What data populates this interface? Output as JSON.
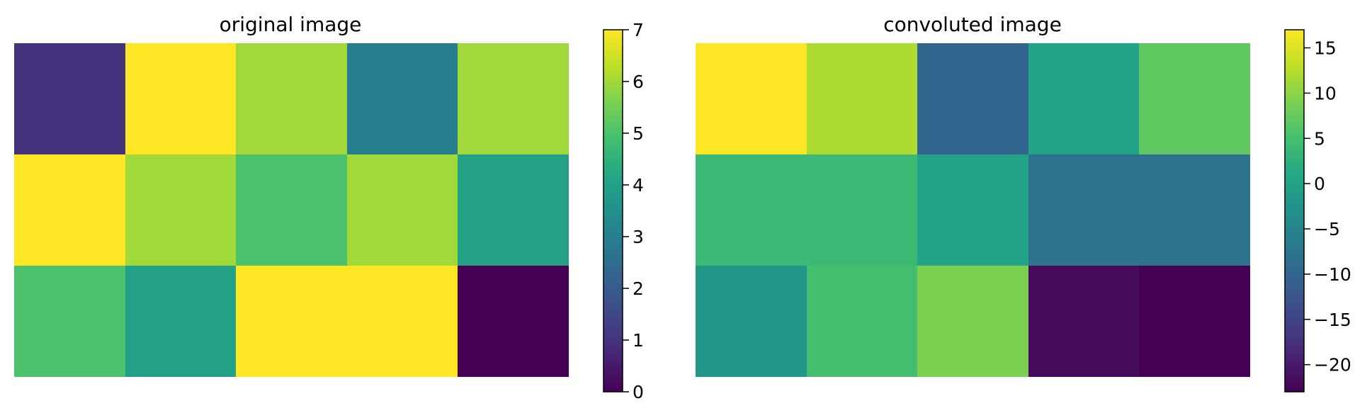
{
  "chart_data": [
    {
      "type": "heatmap",
      "title": "original image",
      "rows": 3,
      "cols": 5,
      "values": [
        [
          1,
          7,
          6,
          3,
          6
        ],
        [
          7,
          6,
          5,
          6,
          4
        ],
        [
          5,
          4,
          7,
          7,
          0
        ]
      ],
      "colormap": "viridis",
      "vmin": 0,
      "vmax": 7,
      "axis_visible": false,
      "colorbar": {
        "ticks": [
          0,
          1,
          2,
          3,
          4,
          5,
          6,
          7
        ],
        "tick_labels": [
          "0",
          "1",
          "2",
          "3",
          "4",
          "5",
          "6",
          "7"
        ]
      }
    },
    {
      "type": "heatmap",
      "title": "convoluted image",
      "rows": 3,
      "cols": 5,
      "values": [
        [
          17,
          12,
          -10,
          0,
          7
        ],
        [
          4,
          4,
          0,
          -8,
          -8
        ],
        [
          -2,
          5,
          9,
          -22,
          -23
        ]
      ],
      "colormap": "viridis",
      "vmin": -23,
      "vmax": 17,
      "axis_visible": false,
      "colorbar": {
        "ticks": [
          -20,
          -15,
          -10,
          -5,
          0,
          5,
          10,
          15
        ],
        "tick_labels": [
          "−20",
          "−15",
          "−10",
          "−5",
          "0",
          "5",
          "10",
          "15"
        ]
      }
    }
  ]
}
